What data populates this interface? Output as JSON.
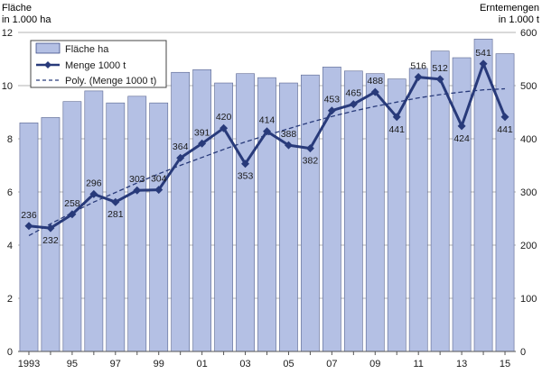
{
  "chart_data": {
    "type": "bar",
    "left_axis_title": [
      "Fläche",
      "in 1.000 ha"
    ],
    "right_axis_title": [
      "Erntemengen",
      "in 1.000 t"
    ],
    "years": [
      1993,
      1994,
      1995,
      1996,
      1997,
      1998,
      1999,
      2000,
      2001,
      2002,
      2003,
      2004,
      2005,
      2006,
      2007,
      2008,
      2009,
      2010,
      2011,
      2012,
      2013,
      2014,
      2015
    ],
    "x_tick_labels": [
      "1993",
      "95",
      "97",
      "99",
      "01",
      "03",
      "05",
      "07",
      "09",
      "11",
      "13",
      "15"
    ],
    "x_tick_years": [
      1993,
      1995,
      1997,
      1999,
      2001,
      2003,
      2005,
      2007,
      2009,
      2011,
      2013,
      2015
    ],
    "left_ylim": [
      0,
      12
    ],
    "left_ticks": [
      0,
      2,
      4,
      6,
      8,
      10,
      12
    ],
    "right_ylim": [
      0,
      600
    ],
    "right_ticks": [
      0,
      100,
      200,
      300,
      400,
      500,
      600
    ],
    "series": [
      {
        "name": "Fläche ha",
        "type": "bar",
        "axis": "left",
        "color": "#b4c0e4",
        "values": [
          8.6,
          8.8,
          9.4,
          9.8,
          9.35,
          9.6,
          9.35,
          10.5,
          10.6,
          10.1,
          10.45,
          10.3,
          10.1,
          10.4,
          10.7,
          10.55,
          10.45,
          10.25,
          10.65,
          11.3,
          11.05,
          11.75,
          11.2
        ]
      },
      {
        "name": "Menge 1000 t",
        "type": "line",
        "axis": "right",
        "color": "#283a7a",
        "values": [
          236,
          232,
          258,
          296,
          281,
          303,
          304,
          364,
          391,
          420,
          353,
          414,
          388,
          382,
          453,
          465,
          488,
          441,
          516,
          512,
          424,
          541,
          441
        ]
      },
      {
        "name": "Poly. (Menge 1000 t)",
        "type": "trend",
        "axis": "right",
        "color": "#283a7a",
        "values": [
          218,
          240,
          261,
          281,
          299,
          317,
          334,
          350,
          365,
          380,
          394,
          407,
          419,
          431,
          442,
          452,
          461,
          469,
          477,
          483,
          488,
          492,
          494
        ]
      }
    ],
    "grid": true,
    "legend_position": "top-left"
  }
}
